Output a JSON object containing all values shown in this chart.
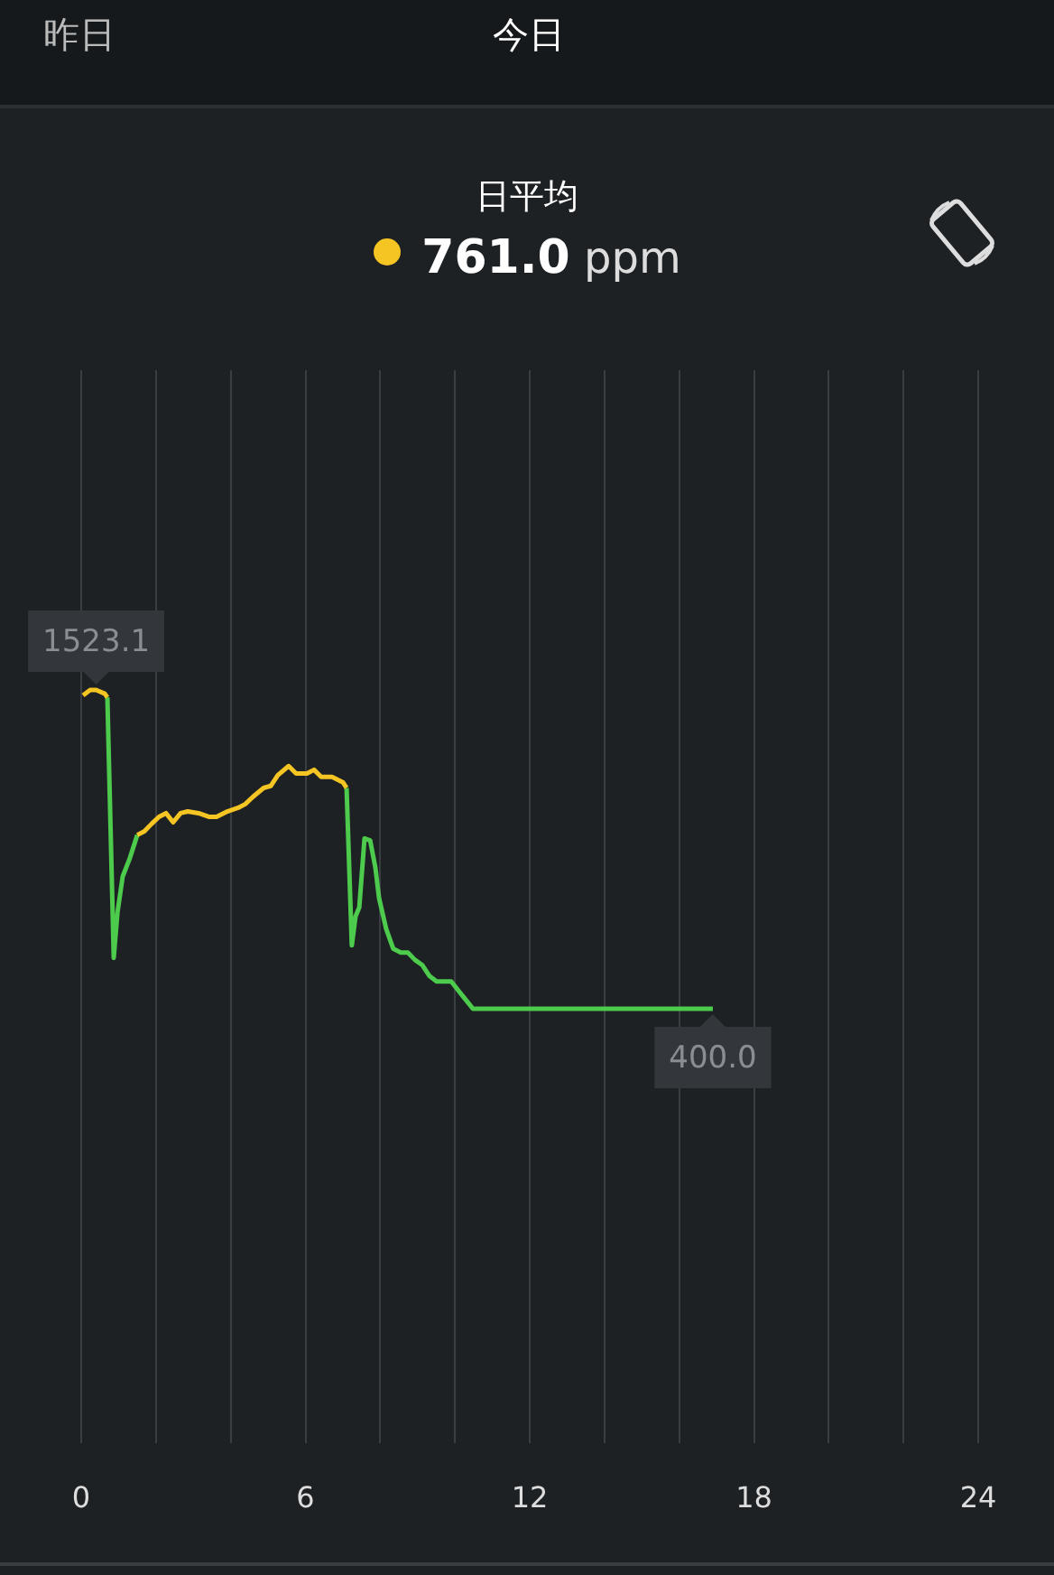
{
  "chart_data": {
    "type": "line",
    "title": "日平均",
    "subtitle": "761.0 ppm",
    "annotations": [
      "昨日",
      "今日"
    ],
    "x": [
      0.05,
      0.24,
      0.4,
      0.63,
      0.7,
      0.87,
      0.97,
      1.11,
      1.3,
      1.5,
      1.69,
      1.88,
      2.08,
      2.27,
      2.46,
      2.66,
      2.85,
      3.14,
      3.43,
      3.62,
      3.91,
      4.2,
      4.39,
      4.59,
      4.88,
      5.07,
      5.26,
      5.55,
      5.75,
      6.04,
      6.23,
      6.42,
      6.71,
      7.0,
      7.1,
      7.24,
      7.34,
      7.44,
      7.58,
      7.73,
      7.87,
      7.97,
      8.16,
      8.35,
      8.55,
      8.74,
      8.93,
      9.13,
      9.32,
      9.51,
      9.9,
      10.09,
      10.48,
      16.9
    ],
    "series": [
      {
        "color": "#f5c623",
        "values": [
          1504,
          1523,
          1523.1,
          1510,
          1497,
          null,
          null,
          null,
          null,
          1012,
          1025,
          1051,
          1076,
          1089,
          1057,
          1089,
          1095,
          1089,
          1076,
          1076,
          1095,
          1108,
          1121,
          1146,
          1178,
          1185,
          1223,
          1255,
          1229,
          1229,
          1242,
          1217,
          1217,
          1198,
          1178,
          null,
          null,
          null,
          null,
          null,
          null,
          null,
          null,
          null,
          null,
          null,
          null,
          null,
          null,
          null,
          null,
          null,
          null,
          null
        ],
        "value_labels": [
          null,
          null,
          "1523.1",
          null,
          null,
          null,
          null,
          null,
          null,
          null,
          null,
          null,
          null,
          null,
          null,
          null,
          null,
          null,
          null,
          null,
          null,
          null,
          null,
          null,
          null,
          null,
          null,
          null,
          null,
          null,
          null,
          null,
          null,
          null,
          null,
          null,
          null,
          null,
          null,
          null,
          null,
          null,
          null,
          null,
          null,
          null,
          null,
          null,
          null,
          null,
          null,
          null,
          null,
          null
        ]
      },
      {
        "color": "#4ccb4c",
        "values": [
          null,
          null,
          null,
          null,
          1497,
          579,
          738,
          866,
          930,
          1012,
          null,
          null,
          null,
          null,
          null,
          null,
          null,
          null,
          null,
          null,
          null,
          null,
          null,
          null,
          null,
          null,
          null,
          null,
          null,
          null,
          null,
          null,
          null,
          null,
          1178,
          623,
          725,
          757,
          1000,
          993,
          898,
          789,
          681,
          611,
          598,
          598,
          572,
          553,
          515,
          496,
          496,
          464,
          400,
          400
        ],
        "value_labels": [
          null,
          null,
          null,
          null,
          null,
          null,
          null,
          null,
          null,
          null,
          null,
          null,
          null,
          null,
          null,
          null,
          null,
          null,
          null,
          null,
          null,
          null,
          null,
          null,
          null,
          null,
          null,
          null,
          null,
          null,
          null,
          null,
          null,
          null,
          null,
          null,
          null,
          null,
          null,
          null,
          null,
          null,
          null,
          null,
          null,
          null,
          null,
          null,
          null,
          null,
          null,
          null,
          null,
          "400.0"
        ]
      }
    ],
    "xlim": [
      0,
      24
    ],
    "xticks": [
      0,
      {
        "value": 2,
        "label": null
      },
      {
        "value": 4,
        "label": null
      },
      6,
      {
        "value": 8,
        "label": null
      },
      {
        "value": 10,
        "label": null
      },
      12,
      {
        "value": 14,
        "label": null
      },
      {
        "value": 16,
        "label": null
      },
      18,
      {
        "value": 20,
        "label": null
      },
      {
        "value": 22,
        "label": null
      },
      24
    ],
    "ylim": [
      -1130,
      2650
    ],
    "grid": "x",
    "tick_labels": "x",
    "marker": "none",
    "line_style": "solid",
    "legend": false
  }
}
